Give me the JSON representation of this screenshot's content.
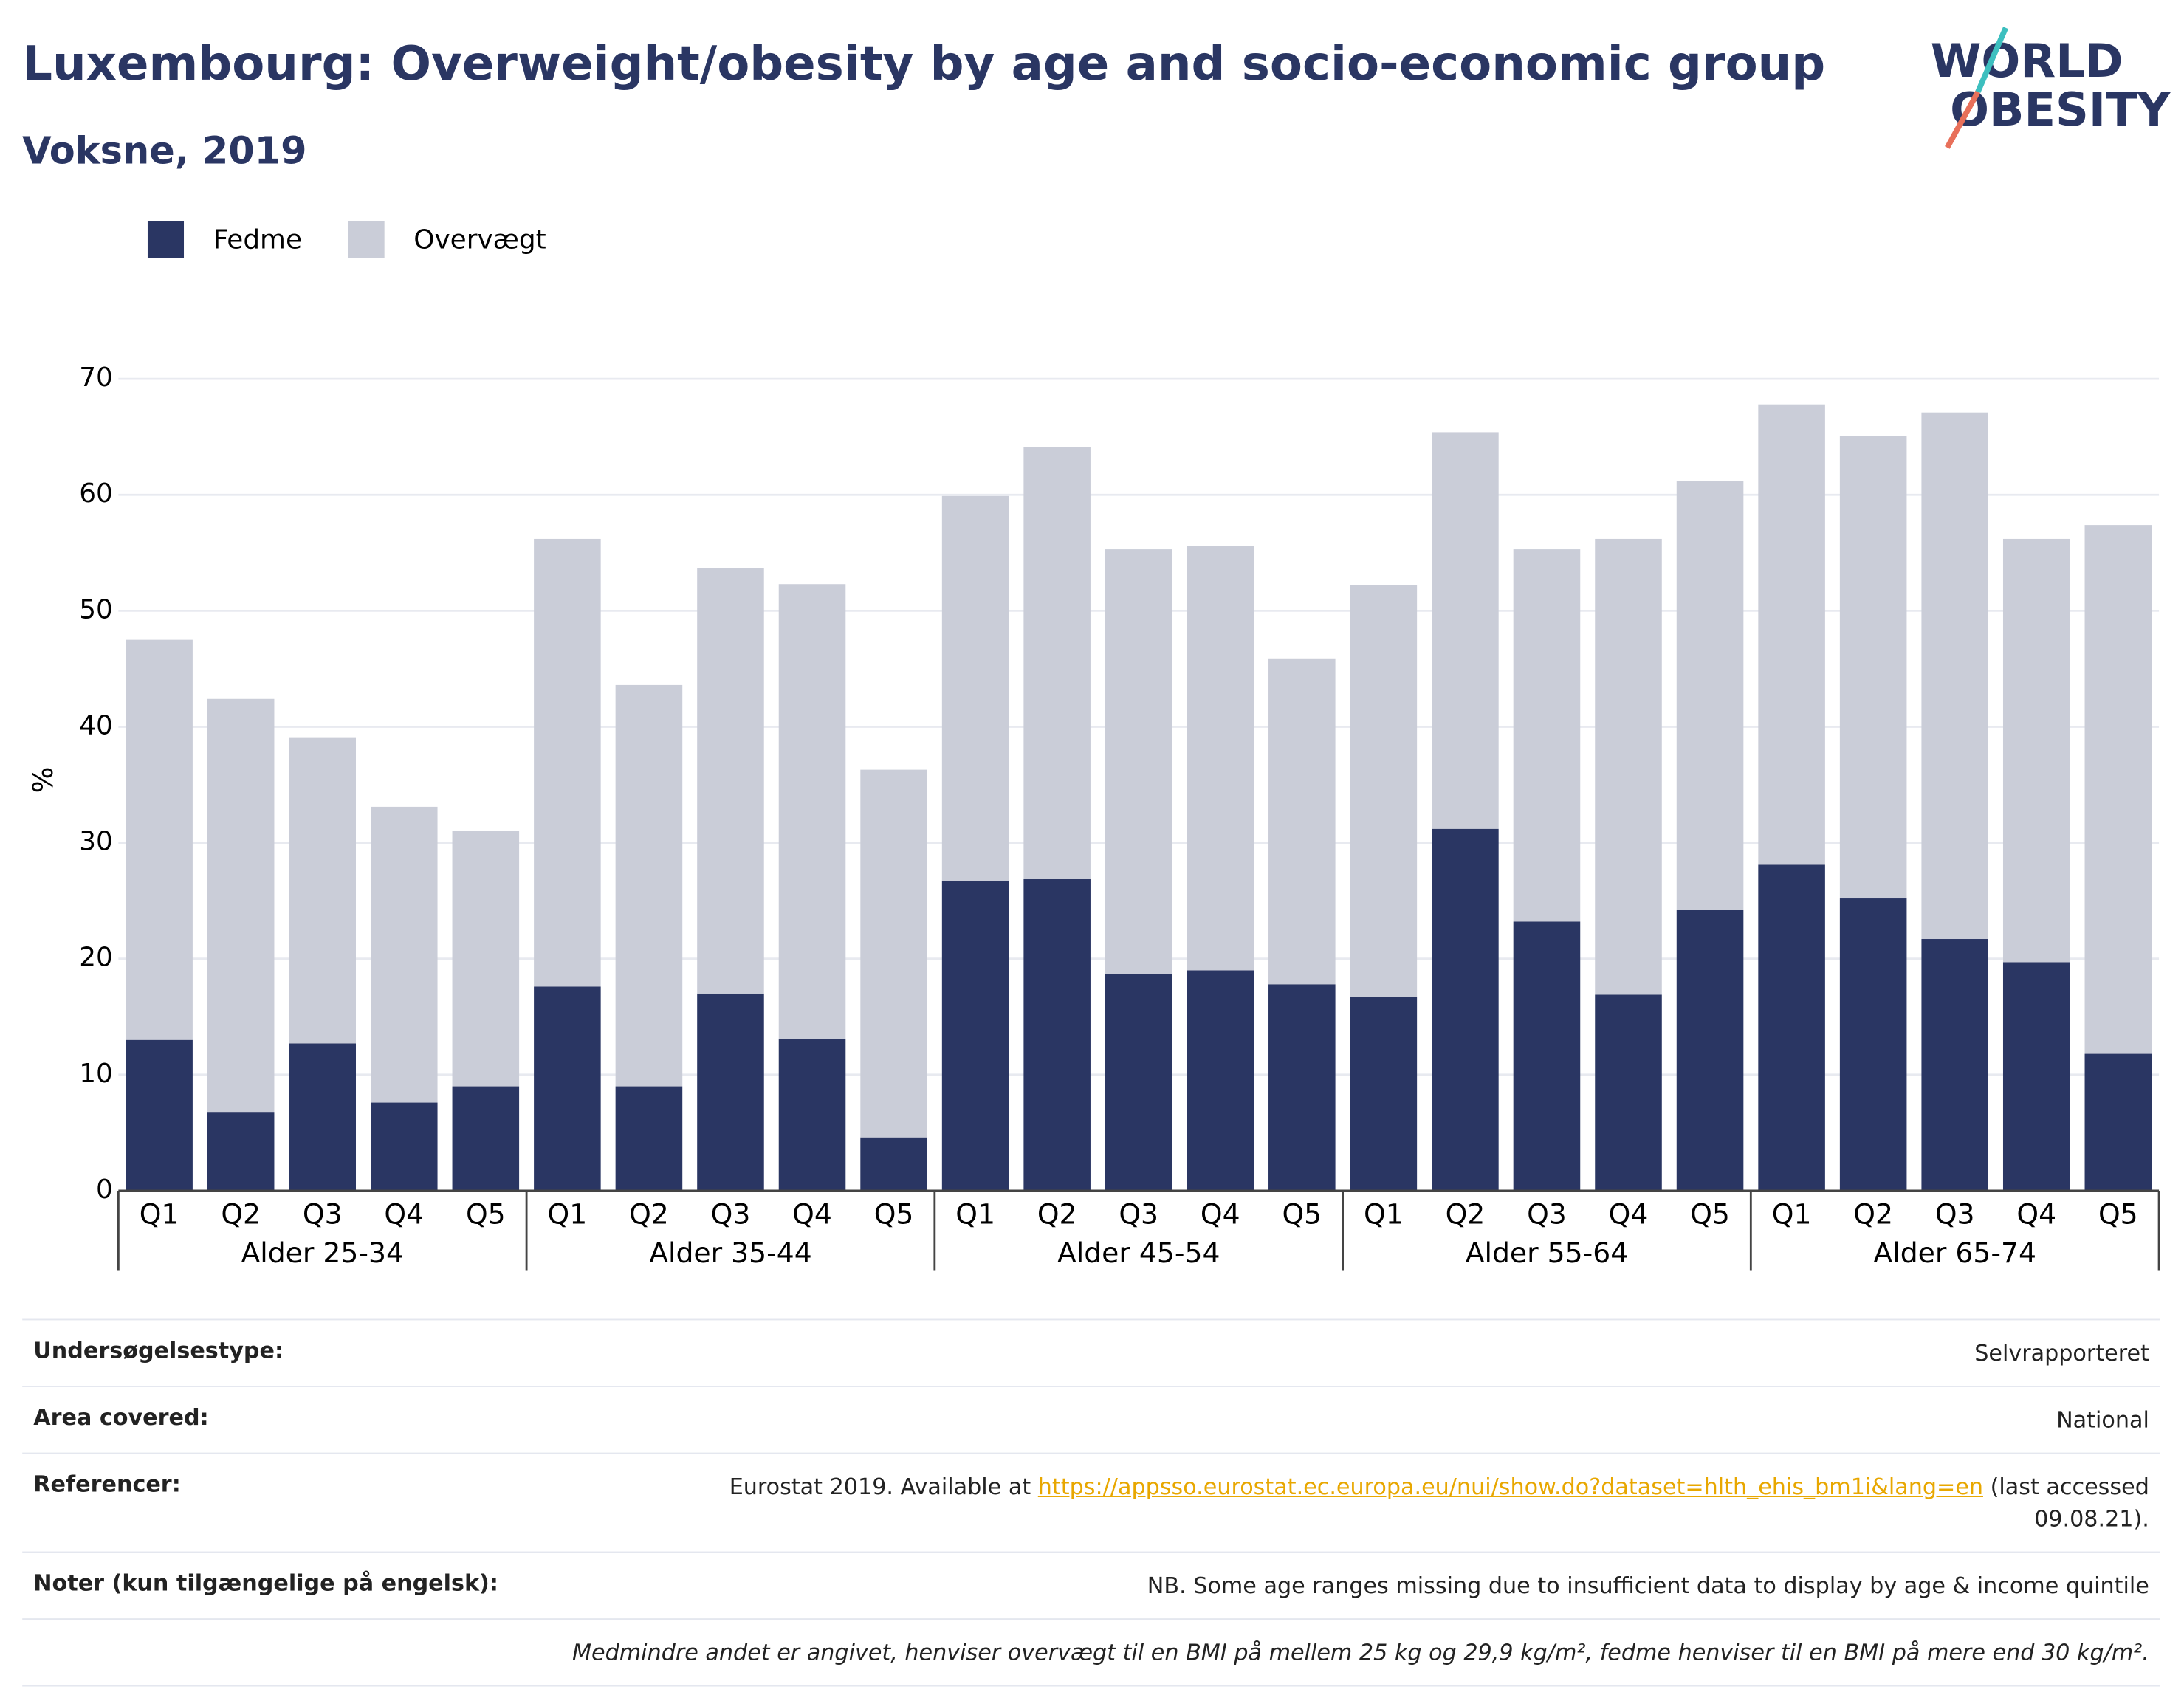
{
  "chart_data": {
    "type": "stacked_bar",
    "title": "Luxembourg: Overweight/obesity by age and socio-economic group",
    "subtitle": "Voksne, 2019",
    "y_label": "%",
    "categories": [
      "Q1",
      "Q2",
      "Q3",
      "Q4",
      "Q5",
      "Q1",
      "Q2",
      "Q3",
      "Q4",
      "Q5",
      "Q1",
      "Q2",
      "Q3",
      "Q4",
      "Q5",
      "Q1",
      "Q2",
      "Q3",
      "Q4",
      "Q5",
      "Q1",
      "Q2",
      "Q3",
      "Q4",
      "Q5"
    ],
    "category_groups": [
      "Alder 25-34",
      "Alder 35-44",
      "Alder 45-54",
      "Alder 55-64",
      "Alder 65-74"
    ],
    "series": [
      {
        "name": "Fedme",
        "color": "#2a3663",
        "values": [
          13.0,
          6.8,
          12.7,
          7.6,
          9.0,
          17.6,
          9.0,
          17.0,
          13.1,
          4.6,
          26.7,
          26.9,
          18.7,
          19.0,
          17.8,
          16.7,
          31.2,
          23.2,
          16.9,
          24.2,
          28.1,
          25.2,
          21.7,
          19.7,
          11.8
        ]
      },
      {
        "name": "Overvægt",
        "color": "#cacdd8",
        "values": [
          34.5,
          35.6,
          26.4,
          25.5,
          22.0,
          38.6,
          34.6,
          36.7,
          39.2,
          31.7,
          33.2,
          37.2,
          36.6,
          36.6,
          28.1,
          35.5,
          34.2,
          32.1,
          39.3,
          37.0,
          39.7,
          39.9,
          45.4,
          36.5,
          45.6
        ]
      }
    ],
    "ylim": [
      0,
      70
    ],
    "yticks": [
      0,
      10,
      20,
      30,
      40,
      50,
      60,
      70
    ],
    "grid": true,
    "legend": "top-left"
  },
  "logo": {
    "line1": "WORLD",
    "line2": "OBESITY"
  },
  "footer": {
    "survey_type": {
      "label": "Undersøgelsestype:",
      "value": "Selvrapporteret"
    },
    "area": {
      "label": "Area covered:",
      "value": "National"
    },
    "references": {
      "label": "Referencer:",
      "text_before": "Eurostat 2019. Available at",
      "link": "https://appsso.eurostat.ec.europa.eu/nui/show.do?dataset=hlth_ehis_bm1i&lang=en",
      "text_after": "(last accessed 09.08.21)."
    },
    "notes": {
      "label": "Noter (kun tilgængelige på engelsk):",
      "value": "NB. Some age ranges missing due to insufficient data to display by age & income quintile"
    },
    "definition": "Medmindre andet er angivet, henviser overvægt til en BMI på mellem 25 kg og 29,9 kg/m², fedme henviser til en BMI på mere end 30 kg/m²."
  }
}
